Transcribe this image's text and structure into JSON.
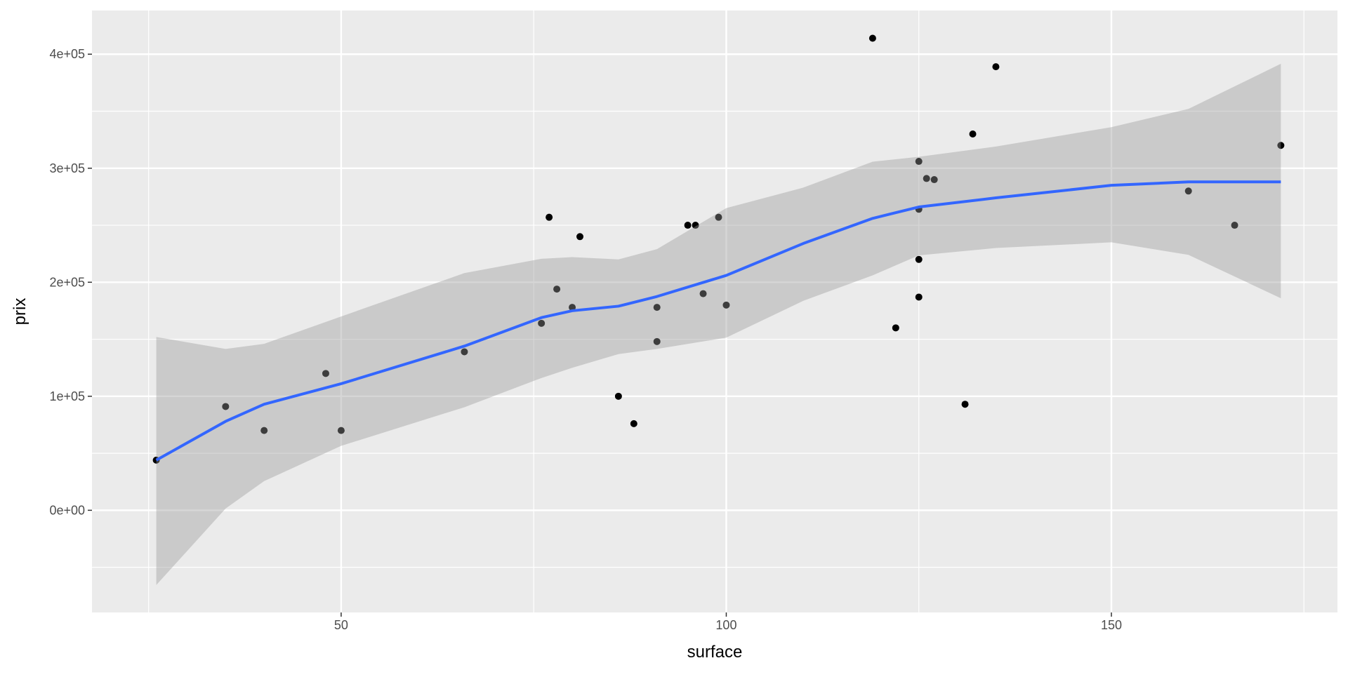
{
  "chart_data": {
    "type": "scatter",
    "x_label": "surface",
    "y_label": "prix",
    "x": [
      26,
      35,
      40,
      48,
      50,
      66,
      76,
      77,
      78,
      80,
      81,
      86,
      88,
      91,
      91,
      95,
      96,
      97,
      99,
      100,
      119,
      122,
      125,
      125,
      125,
      125,
      126,
      127,
      131,
      132,
      135,
      160,
      166,
      172
    ],
    "values": [
      44000,
      91000,
      70000,
      120000,
      70000,
      139000,
      164000,
      257000,
      194000,
      178000,
      240000,
      100000,
      76000,
      178000,
      148000,
      250000,
      250000,
      190000,
      257000,
      180000,
      414000,
      160000,
      306000,
      264000,
      220000,
      187000,
      291000,
      290000,
      93000,
      330000,
      389000,
      280000,
      250000,
      320000
    ],
    "color": "#000000",
    "smooth": {
      "x": [
        26,
        35,
        40,
        50,
        66,
        76,
        80,
        86,
        91,
        100,
        110,
        119,
        125,
        135,
        150,
        160,
        172
      ],
      "y": [
        44000,
        78000,
        93000,
        111000,
        144000,
        169000,
        175000,
        179000,
        187500,
        206000,
        234000,
        256000,
        266000,
        274000,
        285000,
        288000,
        288000
      ],
      "ymin": [
        -65500,
        1500,
        25600,
        56500,
        90400,
        116000,
        125000,
        137000,
        141500,
        151400,
        183700,
        206000,
        223600,
        230000,
        235000,
        224000,
        186000
      ],
      "ymax": [
        152000,
        141500,
        146000,
        170000,
        208000,
        220600,
        222000,
        220000,
        229000,
        265000,
        283000,
        305700,
        310000,
        319000,
        336000,
        352000,
        391600
      ],
      "color": "#3366ff",
      "fill": "#999999"
    },
    "xlim": [
      17.65,
      179.35
    ],
    "ylim": [
      -89600,
      438300
    ],
    "xticks": [
      50,
      100,
      150
    ],
    "xminorticks": [
      25,
      75,
      125,
      175
    ],
    "yticks": [
      {
        "value": 0,
        "label": "0e+00"
      },
      {
        "value": 100000,
        "label": "1e+05"
      },
      {
        "value": 200000,
        "label": "2e+05"
      },
      {
        "value": 300000,
        "label": "3e+05"
      },
      {
        "value": 400000,
        "label": "4e+05"
      }
    ],
    "yminorticks": [
      -50000,
      50000,
      150000,
      250000,
      350000
    ],
    "grid": true,
    "panel_color": "#ebebeb"
  }
}
